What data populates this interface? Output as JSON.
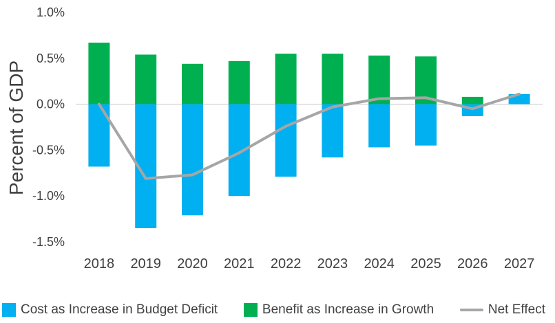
{
  "chart_data": {
    "type": "bar",
    "title": "",
    "ylabel": "Percent of GDP",
    "categories": [
      "2018",
      "2019",
      "2020",
      "2021",
      "2022",
      "2023",
      "2024",
      "2025",
      "2026",
      "2027"
    ],
    "series": [
      {
        "name": "Cost as Increase in Budget Deficit",
        "type": "bar",
        "color": "#00B0F0",
        "values": [
          -0.68,
          -1.35,
          -1.21,
          -1.0,
          -0.79,
          -0.58,
          -0.47,
          -0.45,
          -0.13,
          0.11
        ]
      },
      {
        "name": "Benefit as Increase in Growth",
        "type": "bar",
        "color": "#00B050",
        "values": [
          0.67,
          0.54,
          0.44,
          0.47,
          0.55,
          0.55,
          0.53,
          0.52,
          0.08,
          0.0
        ]
      },
      {
        "name": "Net Effect",
        "type": "line",
        "color": "#A6A6A6",
        "values": [
          0.0,
          -0.81,
          -0.77,
          -0.53,
          -0.24,
          -0.03,
          0.06,
          0.07,
          -0.05,
          0.11
        ]
      }
    ],
    "ylim": [
      -1.5,
      1.0
    ],
    "yticks": [
      1.0,
      0.5,
      0.0,
      -0.5,
      -1.0,
      -1.5
    ],
    "ytick_labels": [
      "1.0%",
      "0.5%",
      "0.0%",
      "-0.5%",
      "-1.0%",
      "-1.5%"
    ],
    "grid": false,
    "legend_position": "bottom",
    "axis_text_color": "#404040",
    "zero_line_color": "#C6C6C6"
  }
}
